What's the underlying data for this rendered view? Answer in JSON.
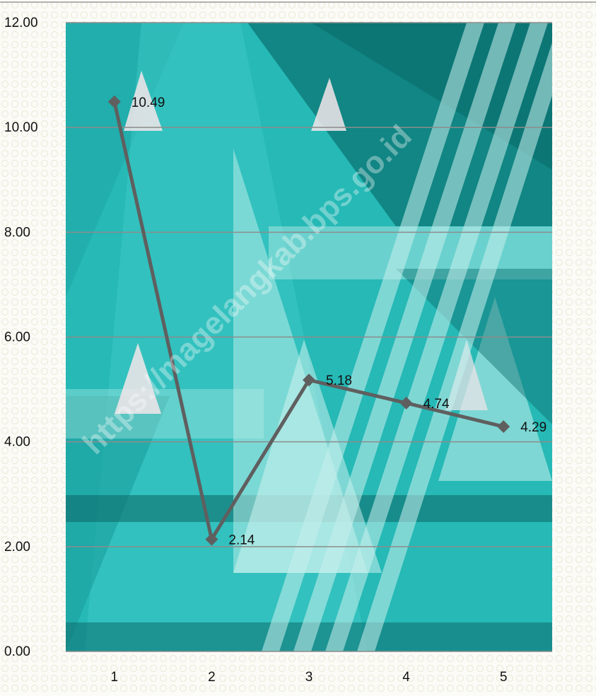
{
  "chart_data": {
    "type": "line",
    "title": "",
    "xlabel": "",
    "ylabel": "",
    "categories": [
      "1",
      "2",
      "3",
      "4",
      "5"
    ],
    "series": [
      {
        "values": [
          10.49,
          2.14,
          5.18,
          4.74,
          4.29
        ]
      }
    ],
    "data_labels": [
      "10.49",
      "2.14",
      "5.18",
      "4.74",
      "4.29"
    ],
    "ylim": [
      0,
      12
    ],
    "yticks": [
      "0.00",
      "2.00",
      "4.00",
      "6.00",
      "8.00",
      "10.00",
      "12.00"
    ],
    "grid": true,
    "legend": "none",
    "watermark": "https://magelangkab.bps.go.id",
    "colors": {
      "line": "#5f5f5f",
      "marker": "#5f5f5f",
      "gridline": "#8c8c8c",
      "plot_teal": "#2bbcb8",
      "plot_dark_teal": "#0c7f7e",
      "plot_light": "#9fe3de",
      "text": "#111111"
    }
  }
}
